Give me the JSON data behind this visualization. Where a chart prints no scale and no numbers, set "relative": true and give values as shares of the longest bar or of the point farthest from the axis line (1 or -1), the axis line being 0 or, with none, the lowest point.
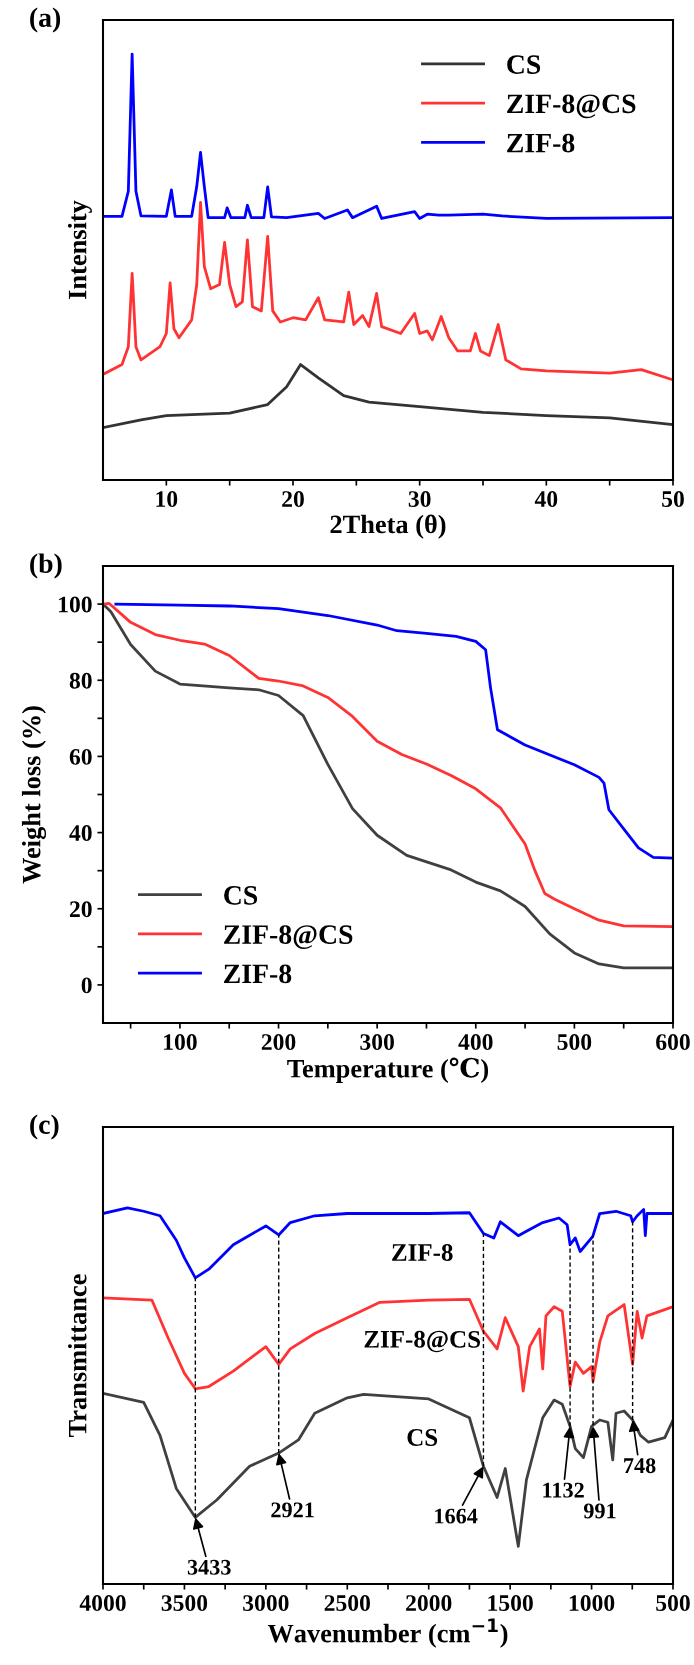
{
  "chart_data": [
    {
      "type": "line",
      "title": "(a)",
      "xlabel": "2Theta (θ)",
      "ylabel": "Intensity",
      "relative": true,
      "legend": "top right",
      "xlim": [
        5,
        50
      ],
      "xticks": [
        10,
        {
          "value": 15,
          "label": null
        },
        20,
        {
          "value": 25,
          "label": null
        },
        30,
        {
          "value": 35,
          "label": null
        },
        40,
        {
          "value": 45,
          "label": null
        },
        50
      ],
      "series": [
        {
          "name": "CS",
          "color": "#333333",
          "x": [
            5,
            8,
            10,
            15,
            18,
            19.5,
            20.6,
            22,
            24,
            26,
            30,
            35,
            40,
            45,
            50
          ],
          "values": [
            0.123,
            0.141,
            0.151,
            0.157,
            0.177,
            0.219,
            0.271,
            0.24,
            0.198,
            0.183,
            0.172,
            0.159,
            0.151,
            0.146,
            0.13
          ]
        },
        {
          "name": "ZIF-8@CS",
          "color": "#ff3333",
          "x": [
            5,
            6.5,
            7.0,
            7.3,
            7.6,
            8.0,
            9.5,
            10.0,
            10.3,
            10.6,
            11,
            12,
            12.4,
            12.7,
            13.0,
            13.5,
            14.2,
            14.6,
            15.0,
            15.5,
            16.0,
            16.4,
            16.8,
            17.5,
            18.0,
            18.4,
            19.0,
            20,
            21,
            22.0,
            22.5,
            24.0,
            24.4,
            24.8,
            25.5,
            26.0,
            26.6,
            27.0,
            28.5,
            29.6,
            30.0,
            30.6,
            31.0,
            31.7,
            32.3,
            33,
            34.0,
            34.4,
            34.8,
            35.5,
            36.2,
            36.8,
            38,
            40,
            45,
            47.5,
            50
          ],
          "values": [
            0.248,
            0.271,
            0.313,
            0.485,
            0.313,
            0.282,
            0.313,
            0.344,
            0.463,
            0.355,
            0.334,
            0.376,
            0.459,
            0.652,
            0.501,
            0.449,
            0.459,
            0.558,
            0.459,
            0.407,
            0.418,
            0.564,
            0.407,
            0.397,
            0.572,
            0.397,
            0.371,
            0.381,
            0.376,
            0.428,
            0.376,
            0.371,
            0.441,
            0.365,
            0.386,
            0.36,
            0.438,
            0.36,
            0.344,
            0.391,
            0.344,
            0.35,
            0.329,
            0.384,
            0.334,
            0.303,
            0.303,
            0.344,
            0.303,
            0.292,
            0.365,
            0.282,
            0.261,
            0.256,
            0.251,
            0.259,
            0.235
          ]
        },
        {
          "name": "ZIF-8",
          "color": "#0000ff",
          "x": [
            5,
            6.5,
            7.0,
            7.3,
            7.6,
            8.0,
            10.0,
            10.4,
            10.7,
            12.0,
            12.4,
            12.7,
            13.0,
            13.3,
            14.6,
            14.8,
            15.1,
            16.2,
            16.4,
            16.7,
            17.7,
            18.0,
            18.3,
            19.5,
            22.0,
            22.5,
            24.3,
            24.7,
            26.6,
            27.0,
            29.6,
            30,
            30.6,
            31.5,
            32.3,
            35,
            36.5,
            40,
            50
          ],
          "values": [
            0.619,
            0.619,
            0.678,
            1.0,
            0.678,
            0.62,
            0.619,
            0.681,
            0.619,
            0.619,
            0.689,
            0.769,
            0.689,
            0.616,
            0.616,
            0.639,
            0.616,
            0.616,
            0.645,
            0.616,
            0.616,
            0.688,
            0.618,
            0.616,
            0.626,
            0.614,
            0.634,
            0.616,
            0.643,
            0.614,
            0.63,
            0.614,
            0.624,
            0.622,
            0.622,
            0.624,
            0.62,
            0.614,
            0.616
          ]
        }
      ]
    },
    {
      "type": "line",
      "title": "(b)",
      "xlabel": "Temperature (℃)",
      "ylabel": "Weight loss (%)",
      "legend": "bottom left",
      "xlim": [
        22,
        600
      ],
      "ylim": [
        -10,
        110
      ],
      "xticks": [
        {
          "value": 50,
          "label": null
        },
        100,
        {
          "value": 150,
          "label": null
        },
        200,
        {
          "value": 250,
          "label": null
        },
        300,
        {
          "value": 350,
          "label": null
        },
        400,
        {
          "value": 450,
          "label": null
        },
        500,
        {
          "value": 550,
          "label": null
        },
        600
      ],
      "yticks": [
        0,
        {
          "value": 10,
          "label": null
        },
        20,
        {
          "value": 30,
          "label": null
        },
        40,
        {
          "value": 50,
          "label": null
        },
        60,
        {
          "value": 70,
          "label": null
        },
        80,
        {
          "value": 90,
          "label": null
        },
        100
      ],
      "series": [
        {
          "name": "CS",
          "color": "#404040",
          "x": [
            22,
            30,
            50,
            75,
            100,
            150,
            180,
            200,
            225,
            250,
            275,
            300,
            330,
            375,
            400,
            425,
            450,
            475,
            500,
            525,
            550,
            600
          ],
          "values": [
            100,
            98,
            89.4,
            82.4,
            79,
            78,
            77.5,
            76,
            70.7,
            57.9,
            46.3,
            39.3,
            34,
            30.2,
            27,
            24.7,
            20.6,
            13.4,
            8.4,
            5.5,
            4.5,
            4.5
          ]
        },
        {
          "name": "ZIF-8@CS",
          "color": "#ff3333",
          "x": [
            22,
            28,
            40,
            50,
            75,
            100,
            125,
            150,
            175,
            180,
            200,
            225,
            250,
            275,
            300,
            325,
            350,
            375,
            400,
            425,
            450,
            460,
            470,
            480,
            500,
            525,
            550,
            600
          ],
          "values": [
            100,
            100.2,
            97.5,
            95.2,
            92,
            90.5,
            89.5,
            86.5,
            81.5,
            80.5,
            79.8,
            78.5,
            75.5,
            70.5,
            64,
            60.5,
            58,
            55,
            51.5,
            46.5,
            37,
            30,
            24,
            22.5,
            20,
            17,
            15.5,
            15.3
          ]
        },
        {
          "name": "ZIF-8",
          "color": "#0000ff",
          "x": [
            35,
            100,
            150,
            200,
            250,
            300,
            320,
            350,
            380,
            400,
            410,
            415,
            422,
            450,
            500,
            525,
            530,
            535,
            550,
            565,
            580,
            600
          ],
          "values": [
            100,
            99.7,
            99.5,
            98.8,
            97,
            94.5,
            93,
            92.3,
            91.5,
            90.2,
            88,
            78,
            67,
            63,
            57.8,
            54.5,
            53,
            46,
            41,
            36,
            33.5,
            33.3
          ]
        }
      ]
    },
    {
      "type": "line",
      "title": "(c)",
      "xlabel": "Wavenumber (cm$^{−1}$)",
      "ylabel": "Transmittance",
      "relative": true,
      "legend": false,
      "xlim": [
        4000,
        500
      ],
      "xticks": [
        4000,
        {
          "value": 3750,
          "label": null
        },
        3500,
        {
          "value": 3250,
          "label": null
        },
        3000,
        {
          "value": 2750,
          "label": null
        },
        2500,
        {
          "value": 2250,
          "label": null
        },
        2000,
        {
          "value": 1750,
          "label": null
        },
        1500,
        {
          "value": 1250,
          "label": null
        },
        1000,
        {
          "value": 750,
          "label": null
        },
        500
      ],
      "series": [
        {
          "name": "ZIF-8",
          "color": "#0000ff",
          "x": [
            4000,
            3850,
            3750,
            3650,
            3550,
            3500,
            3433,
            3350,
            3200,
            3000,
            2921,
            2850,
            2700,
            2500,
            2000,
            1750,
            1664,
            1600,
            1560,
            1500,
            1450,
            1400,
            1300,
            1200,
            1150,
            1132,
            1100,
            1070,
            1000,
            991,
            950,
            850,
            760,
            748,
            720,
            680,
            670,
            660,
            500
          ],
          "values": [
            0.985,
            1.0,
            0.991,
            0.979,
            0.914,
            0.867,
            0.814,
            0.837,
            0.902,
            0.952,
            0.928,
            0.961,
            0.979,
            0.985,
            0.985,
            0.987,
            0.932,
            0.92,
            0.963,
            0.943,
            0.926,
            0.938,
            0.961,
            0.973,
            0.955,
            0.902,
            0.92,
            0.884,
            0.92,
            0.926,
            0.985,
            0.991,
            0.979,
            0.963,
            0.979,
            0.996,
            0.926,
            0.985,
            0.985
          ]
        },
        {
          "name": "ZIF-8@CS",
          "color": "#ff3333",
          "x": [
            4000,
            3700,
            3600,
            3500,
            3433,
            3350,
            3200,
            3000,
            2921,
            2850,
            2700,
            2500,
            2300,
            2000,
            1750,
            1664,
            1580,
            1530,
            1450,
            1420,
            1380,
            1320,
            1300,
            1280,
            1230,
            1180,
            1132,
            1100,
            1050,
            1000,
            991,
            950,
            900,
            800,
            748,
            720,
            690,
            660,
            500
          ],
          "values": [
            0.761,
            0.755,
            0.654,
            0.56,
            0.519,
            0.525,
            0.566,
            0.631,
            0.584,
            0.625,
            0.666,
            0.708,
            0.749,
            0.755,
            0.757,
            0.672,
            0.625,
            0.708,
            0.631,
            0.513,
            0.631,
            0.678,
            0.572,
            0.713,
            0.737,
            0.725,
            0.525,
            0.59,
            0.56,
            0.578,
            0.539,
            0.643,
            0.713,
            0.743,
            0.584,
            0.725,
            0.654,
            0.713,
            0.737
          ]
        },
        {
          "name": "CS",
          "color": "#404040",
          "x": [
            4000,
            3750,
            3650,
            3550,
            3433,
            3300,
            3100,
            2921,
            2800,
            2700,
            2500,
            2400,
            2000,
            1750,
            1664,
            1580,
            1530,
            1450,
            1400,
            1300,
            1230,
            1180,
            1132,
            1100,
            1050,
            1000,
            950,
            900,
            870,
            850,
            800,
            748,
            700,
            650,
            550,
            500
          ],
          "values": [
            0.507,
            0.483,
            0.395,
            0.254,
            0.177,
            0.224,
            0.313,
            0.348,
            0.383,
            0.454,
            0.495,
            0.504,
            0.492,
            0.442,
            0.313,
            0.23,
            0.307,
            0.1,
            0.277,
            0.442,
            0.489,
            0.478,
            0.419,
            0.36,
            0.336,
            0.419,
            0.436,
            0.43,
            0.33,
            0.454,
            0.46,
            0.436,
            0.395,
            0.377,
            0.389,
            0.436
          ]
        }
      ],
      "ref_lines": [
        {
          "axis": "x",
          "value": 3433,
          "line_style": "dashed",
          "color": "#000000"
        },
        {
          "axis": "x",
          "value": 2921,
          "line_style": "dashed",
          "color": "#000000"
        },
        {
          "axis": "x",
          "value": 1664,
          "line_style": "dashed",
          "color": "#000000"
        },
        {
          "axis": "x",
          "value": 1132,
          "line_style": "dashed",
          "color": "#000000"
        },
        {
          "axis": "x",
          "value": 991,
          "line_style": "dashed",
          "color": "#000000"
        },
        {
          "axis": "x",
          "value": 748,
          "line_style": "dashed",
          "color": "#000000"
        }
      ],
      "annotations": [
        {
          "text": "3433",
          "x": 3433,
          "y": 0.177
        },
        {
          "text": "2921",
          "x": 2921,
          "y": 0.348
        },
        {
          "text": "1664",
          "x": 1664,
          "y": 0.313
        },
        {
          "text": "1132",
          "x": 1132,
          "y": 0.419
        },
        {
          "text": "991",
          "x": 991,
          "y": 0.419
        },
        {
          "text": "748",
          "x": 748,
          "y": 0.436
        }
      ]
    }
  ]
}
